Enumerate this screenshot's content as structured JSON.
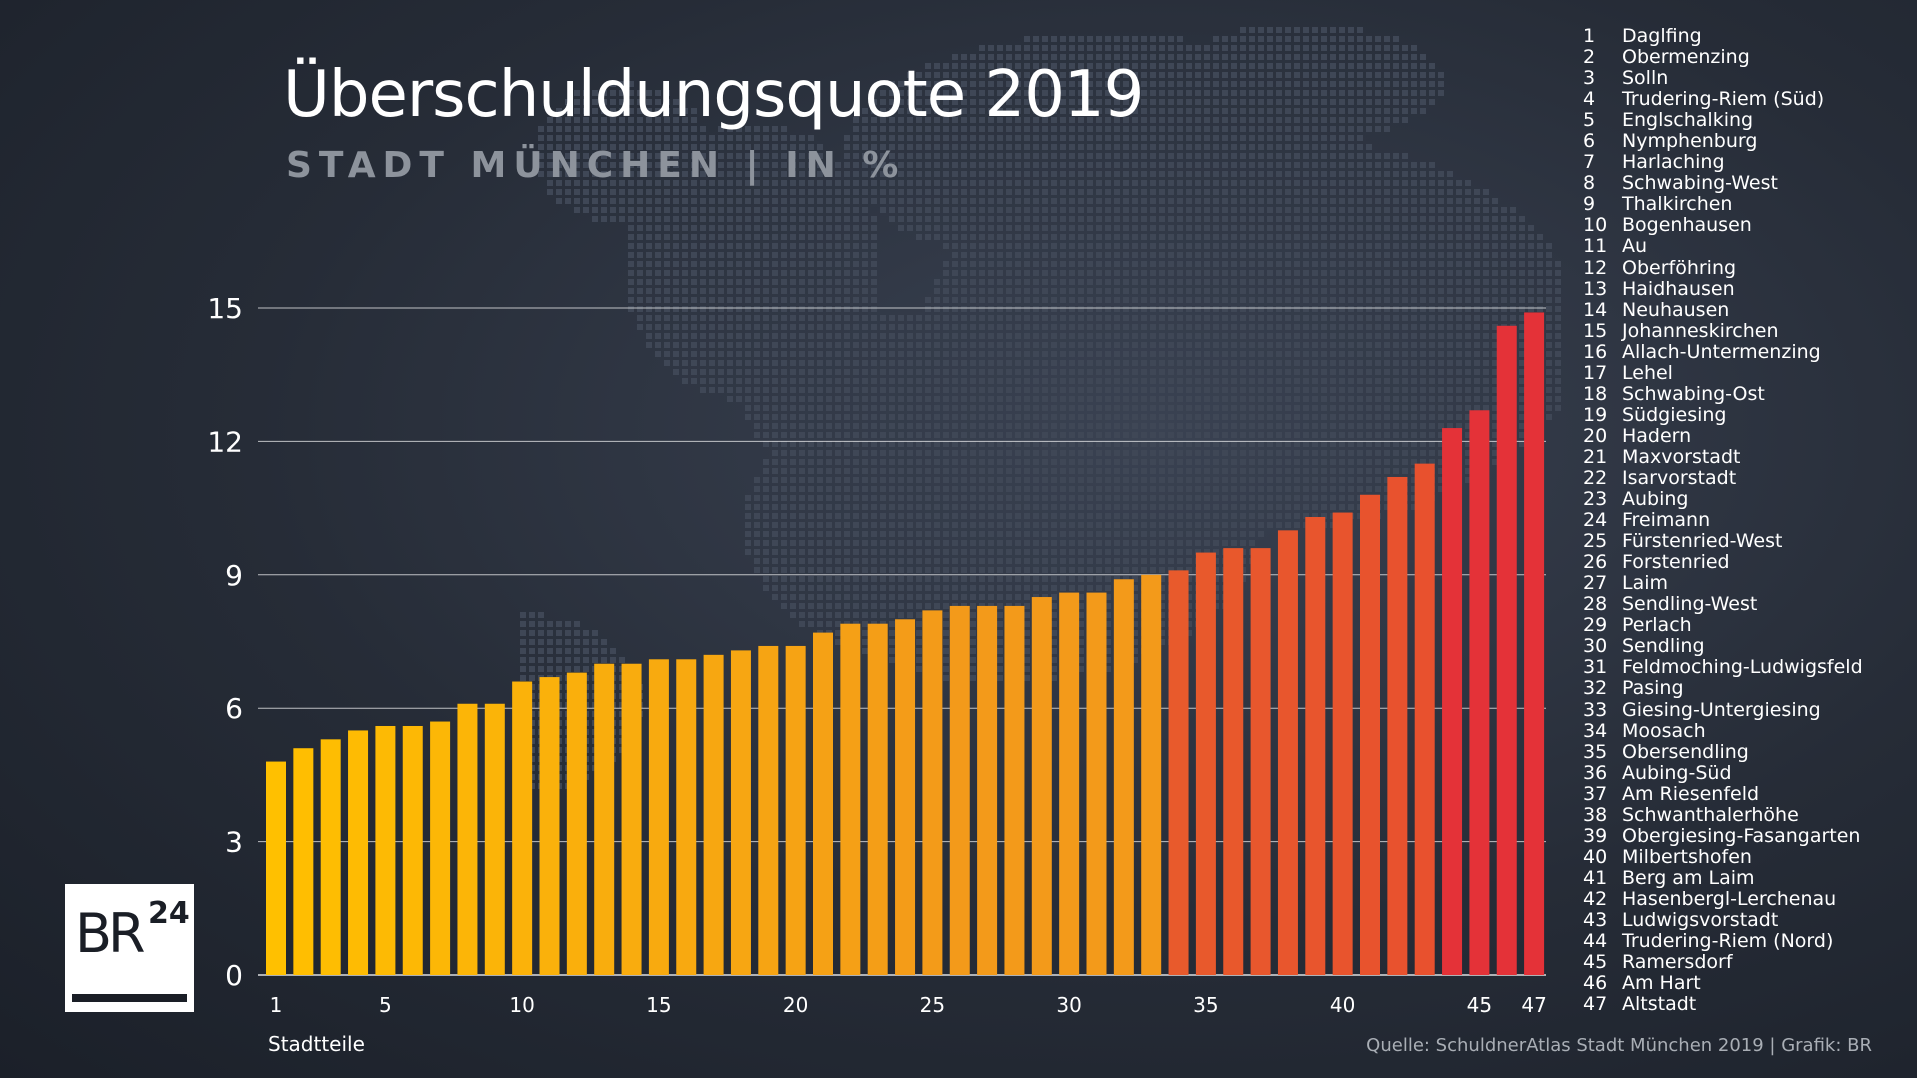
{
  "title": "Überschuldungsquote 2019",
  "subtitle": "STADT MÜNCHEN | IN %",
  "x_axis_title": "Stadtteile",
  "source": "Quelle: SchuldnerAtlas Stadt München 2019 | Grafik: BR",
  "logo": {
    "text": "BR",
    "superscript": "24"
  },
  "colors": {
    "low": "#ffc000",
    "mid": "#f39a1a",
    "high": "#e85a2c",
    "top": "#e43238",
    "gridline": "#ffffff"
  },
  "districts": [
    "Daglfing",
    "Obermenzing",
    "Solln",
    "Trudering-Riem (Süd)",
    "Englschalking",
    "Nymphenburg",
    "Harlaching",
    "Schwabing-West",
    "Thalkirchen",
    "Bogenhausen",
    "Au",
    "Oberföhring",
    "Haidhausen",
    "Neuhausen",
    "Johanneskirchen",
    "Allach-Untermenzing",
    "Lehel",
    "Schwabing-Ost",
    "Südgiesing",
    "Hadern",
    "Maxvorstadt",
    "Isarvorstadt",
    "Aubing",
    "Freimann",
    "Fürstenried-West",
    "Forstenried",
    "Laim",
    "Sendling-West",
    "Perlach",
    "Sendling",
    "Feldmoching-Ludwigsfeld",
    "Pasing",
    "Giesing-Untergiesing",
    "Moosach",
    "Obersendling",
    "Aubing-Süd",
    "Am Riesenfeld",
    "Schwanthalerhöhe",
    "Obergiesing-Fasangarten",
    "Milbertshofen",
    "Berg am Laim",
    "Hasenbergl-Lerchenau",
    "Ludwigsvorstadt",
    "Trudering-Riem (Nord)",
    "Ramersdorf",
    "Am Hart",
    "Altstadt"
  ],
  "chart_data": {
    "type": "bar",
    "title": "Überschuldungsquote 2019",
    "subtitle": "STADT MÜNCHEN | IN %",
    "xlabel": "Stadtteile",
    "ylabel": "",
    "ylim": [
      0,
      15
    ],
    "yticks": [
      0,
      3,
      6,
      9,
      12,
      15
    ],
    "xtick_labels": [
      "1",
      "5",
      "10",
      "15",
      "20",
      "25",
      "30",
      "35",
      "40",
      "45",
      "47"
    ],
    "categories": [
      1,
      2,
      3,
      4,
      5,
      6,
      7,
      8,
      9,
      10,
      11,
      12,
      13,
      14,
      15,
      16,
      17,
      18,
      19,
      20,
      21,
      22,
      23,
      24,
      25,
      26,
      27,
      28,
      29,
      30,
      31,
      32,
      33,
      34,
      35,
      36,
      37,
      38,
      39,
      40,
      41,
      42,
      43,
      44,
      45,
      46,
      47
    ],
    "values": [
      4.8,
      5.1,
      5.3,
      5.5,
      5.6,
      5.6,
      5.7,
      6.1,
      6.1,
      6.6,
      6.7,
      6.8,
      7.0,
      7.0,
      7.1,
      7.1,
      7.2,
      7.3,
      7.4,
      7.4,
      7.7,
      7.9,
      7.9,
      8.0,
      8.2,
      8.3,
      8.3,
      8.3,
      8.5,
      8.6,
      8.6,
      8.9,
      9.0,
      9.1,
      9.5,
      9.6,
      9.6,
      10.0,
      10.3,
      10.4,
      10.8,
      11.2,
      11.5,
      12.3,
      12.7,
      14.6,
      14.9
    ],
    "grid": "horizontal",
    "legend": "right"
  }
}
